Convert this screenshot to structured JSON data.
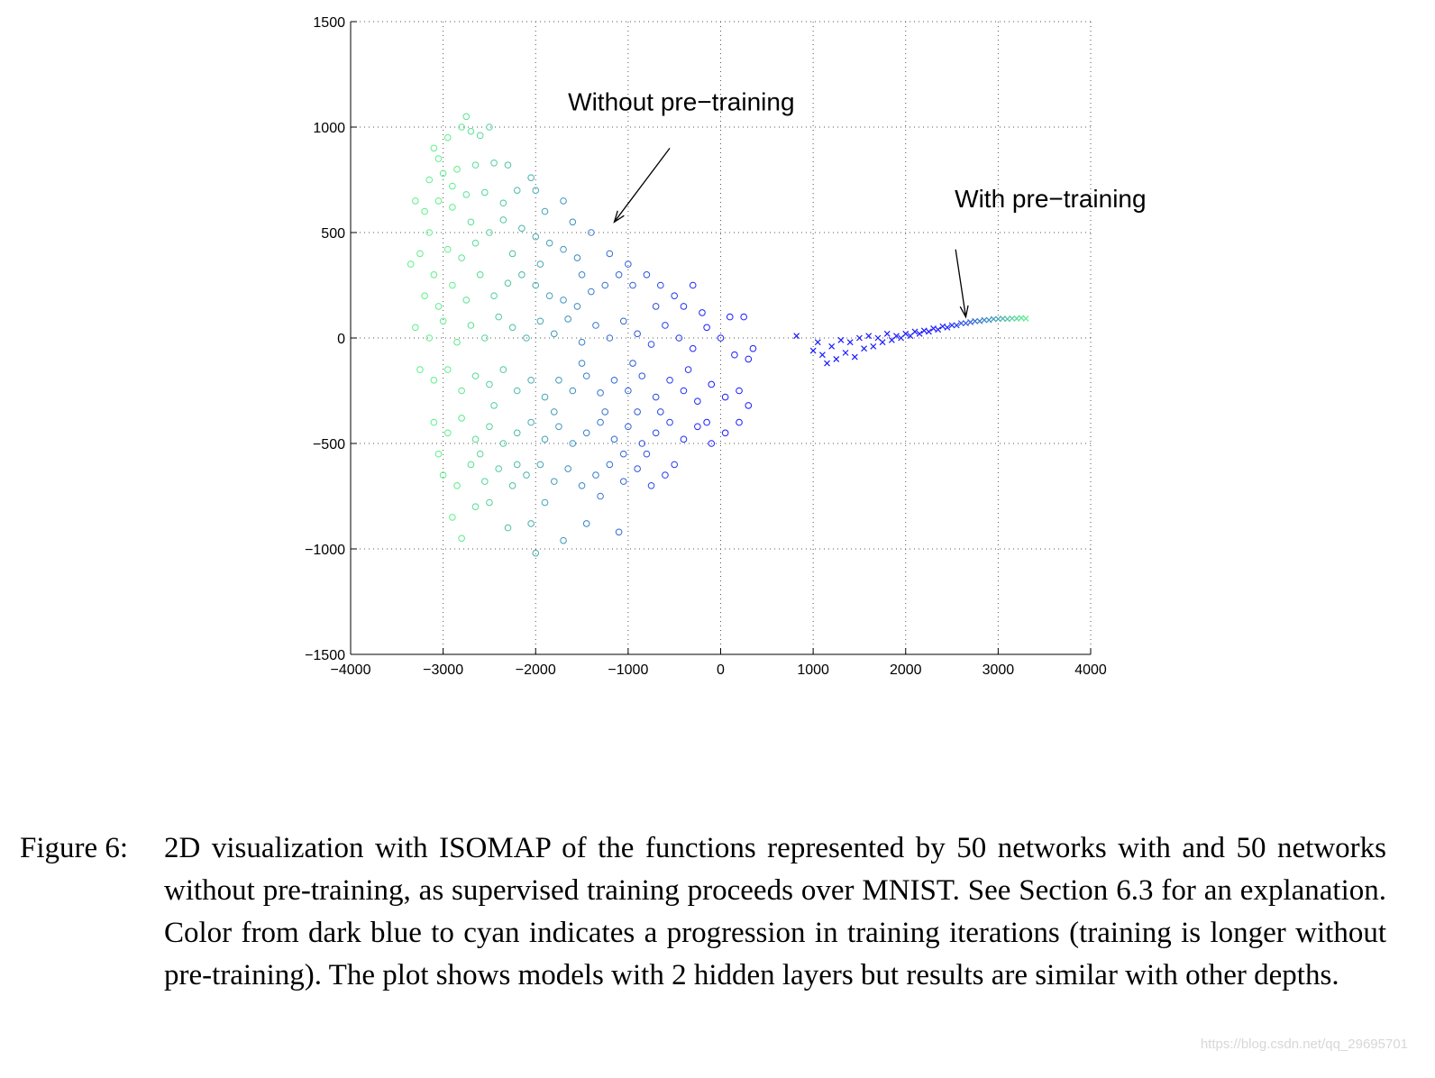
{
  "chart_data": {
    "type": "scatter",
    "title": "",
    "xlabel": "",
    "ylabel": "",
    "xlim": [
      -4000,
      4000
    ],
    "ylim": [
      -1500,
      1500
    ],
    "xticks": [
      -4000,
      -3000,
      -2000,
      -1000,
      0,
      1000,
      2000,
      3000,
      4000
    ],
    "yticks": [
      -1500,
      -1000,
      -500,
      0,
      500,
      1000,
      1500
    ],
    "xtick_labels": [
      "−4000",
      "−3000",
      "−2000",
      "−1000",
      "0",
      "1000",
      "2000",
      "3000",
      "4000"
    ],
    "ytick_labels": [
      "−1500",
      "−1000",
      "−500",
      "0",
      "500",
      "1000",
      "1500"
    ],
    "grid": true,
    "color_scale": {
      "start": "#1a1aff",
      "end": "#5cf08a"
    },
    "annotations": [
      {
        "text": "Without pre−training",
        "x": -1650,
        "y": 1080,
        "arrow_from": [
          -550,
          900
        ],
        "arrow_to": [
          -1150,
          550
        ]
      },
      {
        "text": "With pre−training",
        "x": 2530,
        "y": 620,
        "arrow_from": [
          2540,
          420
        ],
        "arrow_to": [
          2650,
          100
        ]
      }
    ],
    "series": [
      {
        "marker": "circle",
        "points": [
          [
            -3100,
            900
          ],
          [
            -3050,
            850
          ],
          [
            -2950,
            950
          ],
          [
            -2800,
            1000
          ],
          [
            -2750,
            1050
          ],
          [
            -2700,
            980
          ],
          [
            -2600,
            960
          ],
          [
            -2500,
            1000
          ],
          [
            -3150,
            750
          ],
          [
            -3000,
            780
          ],
          [
            -2900,
            720
          ],
          [
            -2850,
            800
          ],
          [
            -2650,
            820
          ],
          [
            -2450,
            830
          ],
          [
            -2300,
            820
          ],
          [
            -2050,
            760
          ],
          [
            -3300,
            650
          ],
          [
            -3200,
            600
          ],
          [
            -3050,
            650
          ],
          [
            -2900,
            620
          ],
          [
            -2750,
            680
          ],
          [
            -2550,
            690
          ],
          [
            -2350,
            640
          ],
          [
            -2200,
            700
          ],
          [
            -2000,
            700
          ],
          [
            -1900,
            600
          ],
          [
            -1700,
            650
          ],
          [
            -3350,
            350
          ],
          [
            -3250,
            400
          ],
          [
            -3100,
            300
          ],
          [
            -2950,
            420
          ],
          [
            -2800,
            380
          ],
          [
            -2650,
            450
          ],
          [
            -2500,
            500
          ],
          [
            -2350,
            560
          ],
          [
            -2150,
            520
          ],
          [
            -2000,
            480
          ],
          [
            -1850,
            450
          ],
          [
            -1700,
            420
          ],
          [
            -1550,
            380
          ],
          [
            -1400,
            500
          ],
          [
            -1200,
            400
          ],
          [
            -3200,
            200
          ],
          [
            -3050,
            150
          ],
          [
            -2900,
            250
          ],
          [
            -2750,
            180
          ],
          [
            -2600,
            300
          ],
          [
            -2450,
            200
          ],
          [
            -2300,
            260
          ],
          [
            -2150,
            300
          ],
          [
            -2000,
            250
          ],
          [
            -1850,
            200
          ],
          [
            -1700,
            180
          ],
          [
            -1550,
            150
          ],
          [
            -1400,
            220
          ],
          [
            -1250,
            250
          ],
          [
            -1100,
            300
          ],
          [
            -950,
            250
          ],
          [
            -800,
            300
          ],
          [
            -650,
            250
          ],
          [
            -500,
            200
          ],
          [
            -300,
            250
          ],
          [
            -3300,
            50
          ],
          [
            -3150,
            0
          ],
          [
            -3000,
            80
          ],
          [
            -2850,
            -20
          ],
          [
            -2700,
            60
          ],
          [
            -2550,
            0
          ],
          [
            -2400,
            100
          ],
          [
            -2250,
            50
          ],
          [
            -2100,
            0
          ],
          [
            -1950,
            80
          ],
          [
            -1800,
            20
          ],
          [
            -1650,
            90
          ],
          [
            -1500,
            -20
          ],
          [
            -1350,
            60
          ],
          [
            -1200,
            0
          ],
          [
            -1050,
            80
          ],
          [
            -900,
            20
          ],
          [
            -750,
            -30
          ],
          [
            -600,
            60
          ],
          [
            -450,
            0
          ],
          [
            -300,
            -50
          ],
          [
            -150,
            50
          ],
          [
            0,
            0
          ],
          [
            150,
            -80
          ],
          [
            250,
            100
          ],
          [
            300,
            -100
          ],
          [
            -3250,
            -150
          ],
          [
            -3100,
            -200
          ],
          [
            -2950,
            -150
          ],
          [
            -2800,
            -250
          ],
          [
            -2650,
            -180
          ],
          [
            -2500,
            -220
          ],
          [
            -2350,
            -150
          ],
          [
            -2200,
            -250
          ],
          [
            -2050,
            -200
          ],
          [
            -1900,
            -280
          ],
          [
            -1750,
            -200
          ],
          [
            -1600,
            -250
          ],
          [
            -1450,
            -180
          ],
          [
            -1300,
            -260
          ],
          [
            -1150,
            -200
          ],
          [
            -1000,
            -250
          ],
          [
            -850,
            -180
          ],
          [
            -700,
            -280
          ],
          [
            -550,
            -200
          ],
          [
            -400,
            -250
          ],
          [
            -250,
            -300
          ],
          [
            -100,
            -220
          ],
          [
            50,
            -280
          ],
          [
            200,
            -250
          ],
          [
            300,
            -320
          ],
          [
            -3100,
            -400
          ],
          [
            -2950,
            -450
          ],
          [
            -2800,
            -380
          ],
          [
            -2650,
            -480
          ],
          [
            -2500,
            -420
          ],
          [
            -2350,
            -500
          ],
          [
            -2200,
            -450
          ],
          [
            -2050,
            -400
          ],
          [
            -1900,
            -480
          ],
          [
            -1750,
            -420
          ],
          [
            -1600,
            -500
          ],
          [
            -1450,
            -450
          ],
          [
            -1300,
            -400
          ],
          [
            -1150,
            -480
          ],
          [
            -1000,
            -420
          ],
          [
            -850,
            -500
          ],
          [
            -700,
            -450
          ],
          [
            -550,
            -400
          ],
          [
            -400,
            -480
          ],
          [
            -250,
            -420
          ],
          [
            -100,
            -500
          ],
          [
            50,
            -450
          ],
          [
            200,
            -400
          ],
          [
            -3000,
            -650
          ],
          [
            -2850,
            -700
          ],
          [
            -2700,
            -600
          ],
          [
            -2550,
            -680
          ],
          [
            -2400,
            -620
          ],
          [
            -2250,
            -700
          ],
          [
            -2100,
            -650
          ],
          [
            -1950,
            -600
          ],
          [
            -1800,
            -680
          ],
          [
            -1650,
            -620
          ],
          [
            -1500,
            -700
          ],
          [
            -1350,
            -650
          ],
          [
            -1200,
            -600
          ],
          [
            -1050,
            -680
          ],
          [
            -900,
            -620
          ],
          [
            -750,
            -700
          ],
          [
            -600,
            -650
          ],
          [
            -2900,
            -850
          ],
          [
            -2800,
            -950
          ],
          [
            -2650,
            -800
          ],
          [
            -2500,
            -780
          ],
          [
            -2300,
            -900
          ],
          [
            -2050,
            -880
          ],
          [
            -1700,
            -960
          ],
          [
            -1450,
            -880
          ],
          [
            -1100,
            -920
          ],
          [
            -2000,
            -1020
          ],
          [
            -2200,
            -600
          ],
          [
            -1300,
            -750
          ],
          [
            -800,
            -550
          ],
          [
            -500,
            -600
          ],
          [
            -2600,
            -550
          ],
          [
            -3050,
            -550
          ],
          [
            -1900,
            -780
          ],
          [
            -1500,
            -120
          ],
          [
            -1250,
            -350
          ],
          [
            -950,
            -120
          ],
          [
            -650,
            -350
          ],
          [
            -350,
            -150
          ],
          [
            -150,
            -400
          ],
          [
            -2450,
            -320
          ],
          [
            -1800,
            -350
          ],
          [
            -1050,
            -550
          ],
          [
            -3150,
            500
          ],
          [
            -2700,
            550
          ],
          [
            -1600,
            550
          ],
          [
            -1000,
            350
          ],
          [
            -700,
            150
          ],
          [
            -400,
            150
          ],
          [
            -200,
            120
          ],
          [
            100,
            100
          ],
          [
            350,
            -50
          ],
          [
            -2250,
            400
          ],
          [
            -1950,
            350
          ],
          [
            -1500,
            300
          ],
          [
            -900,
            -350
          ]
        ]
      },
      {
        "marker": "x",
        "points": [
          [
            820,
            10
          ],
          [
            1000,
            -60
          ],
          [
            1050,
            -20
          ],
          [
            1100,
            -80
          ],
          [
            1150,
            -120
          ],
          [
            1200,
            -40
          ],
          [
            1250,
            -100
          ],
          [
            1300,
            -10
          ],
          [
            1350,
            -70
          ],
          [
            1400,
            -20
          ],
          [
            1450,
            -90
          ],
          [
            1500,
            0
          ],
          [
            1550,
            -50
          ],
          [
            1600,
            10
          ],
          [
            1650,
            -40
          ],
          [
            1700,
            0
          ],
          [
            1750,
            -20
          ],
          [
            1800,
            20
          ],
          [
            1850,
            -10
          ],
          [
            1900,
            10
          ],
          [
            1950,
            0
          ],
          [
            2000,
            20
          ],
          [
            2050,
            10
          ],
          [
            2100,
            30
          ],
          [
            2150,
            20
          ],
          [
            2200,
            35
          ],
          [
            2250,
            30
          ],
          [
            2300,
            45
          ],
          [
            2350,
            40
          ],
          [
            2400,
            55
          ],
          [
            2450,
            50
          ],
          [
            2500,
            60
          ],
          [
            2550,
            60
          ],
          [
            2600,
            70
          ],
          [
            2650,
            70
          ],
          [
            2700,
            75
          ],
          [
            2750,
            80
          ],
          [
            2800,
            80
          ],
          [
            2850,
            85
          ],
          [
            2900,
            85
          ],
          [
            2950,
            90
          ],
          [
            3000,
            90
          ],
          [
            3050,
            92
          ],
          [
            3100,
            90
          ],
          [
            3150,
            93
          ],
          [
            3200,
            92
          ],
          [
            3250,
            95
          ],
          [
            3300,
            92
          ]
        ]
      }
    ]
  },
  "caption": {
    "label": "Figure 6:",
    "text": "2D visualization with ISOMAP of the functions represented by 50 networks with and 50 networks without pre-training, as supervised training proceeds over MNIST. See Section 6.3 for an explanation. Color from dark blue to cyan indicates a progression in training iterations (training is longer without pre-training). The plot shows models with 2 hidden layers but results are similar with other depths."
  },
  "watermark": "https://blog.csdn.net/qq_29695701"
}
